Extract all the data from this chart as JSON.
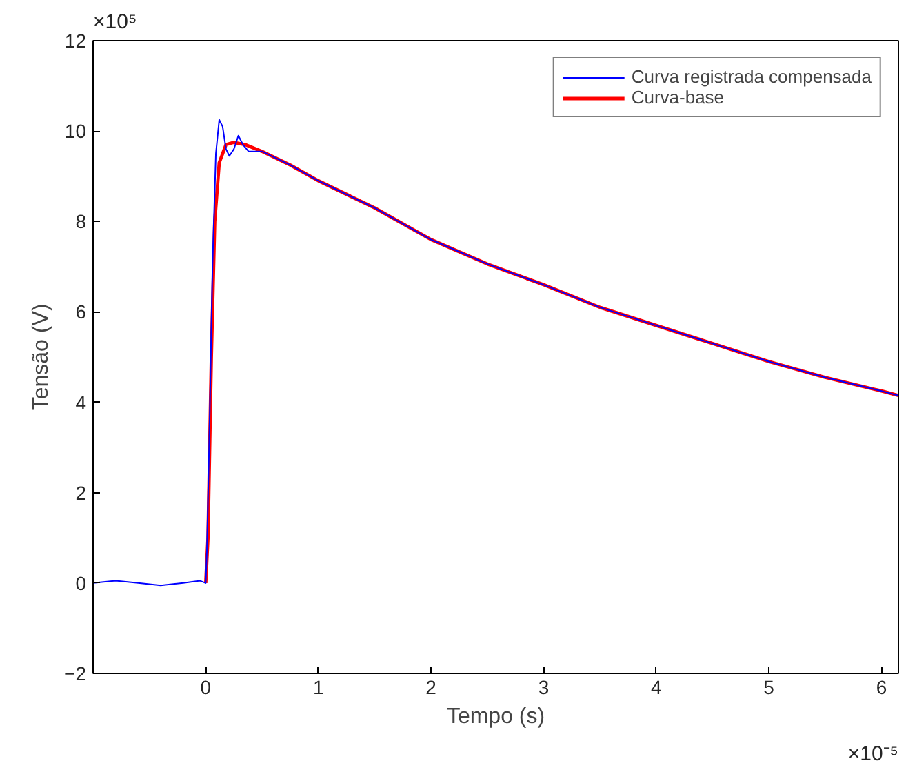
{
  "chart_data": {
    "type": "line",
    "xlabel": "Tempo (s)",
    "ylabel": "Tensão (V)",
    "xlim": [
      -1,
      6.15
    ],
    "ylim": [
      -2,
      12
    ],
    "xticks": [
      0,
      1,
      2,
      3,
      4,
      5,
      6
    ],
    "yticks": [
      -2,
      0,
      2,
      4,
      6,
      8,
      10,
      12
    ],
    "grid": false,
    "legend": "top right",
    "line_style": "solid",
    "marker": "none",
    "annotations": [
      "×10⁵",
      "×10⁻⁵"
    ],
    "series": [
      {
        "name": "Curva registrada compensada",
        "color": "#0000ff",
        "x": [
          -1,
          -0.8,
          -0.6,
          -0.4,
          -0.2,
          -0.05,
          0,
          0.01,
          0.03,
          0.06,
          0.09,
          0.12,
          0.15,
          0.18,
          0.21,
          0.25,
          0.29,
          0.33,
          0.38,
          0.45,
          0.5,
          0.75,
          1,
          1.5,
          2,
          2.5,
          3,
          3.5,
          4,
          4.5,
          5,
          5.5,
          6,
          6.15
        ],
        "values": [
          0,
          0.05,
          0,
          -0.05,
          0,
          0.05,
          0,
          0.7,
          3,
          7,
          9.5,
          10.25,
          10.1,
          9.6,
          9.45,
          9.6,
          9.9,
          9.7,
          9.55,
          9.55,
          9.55,
          9.25,
          8.9,
          8.3,
          7.6,
          7.06,
          6.6,
          6.1,
          5.7,
          5.3,
          4.9,
          4.55,
          4.25,
          4.15
        ]
      },
      {
        "name": "Curva-base",
        "color": "#ff0000",
        "x": [
          0,
          0.02,
          0.05,
          0.08,
          0.12,
          0.18,
          0.25,
          0.35,
          0.5,
          0.75,
          1,
          1.5,
          2,
          2.5,
          3,
          3.5,
          4,
          4.5,
          5,
          5.5,
          6,
          6.15
        ],
        "values": [
          0,
          1,
          5,
          8,
          9.3,
          9.7,
          9.75,
          9.7,
          9.55,
          9.25,
          8.9,
          8.3,
          7.6,
          7.06,
          6.6,
          6.1,
          5.7,
          5.3,
          4.9,
          4.55,
          4.25,
          4.15
        ]
      }
    ]
  }
}
